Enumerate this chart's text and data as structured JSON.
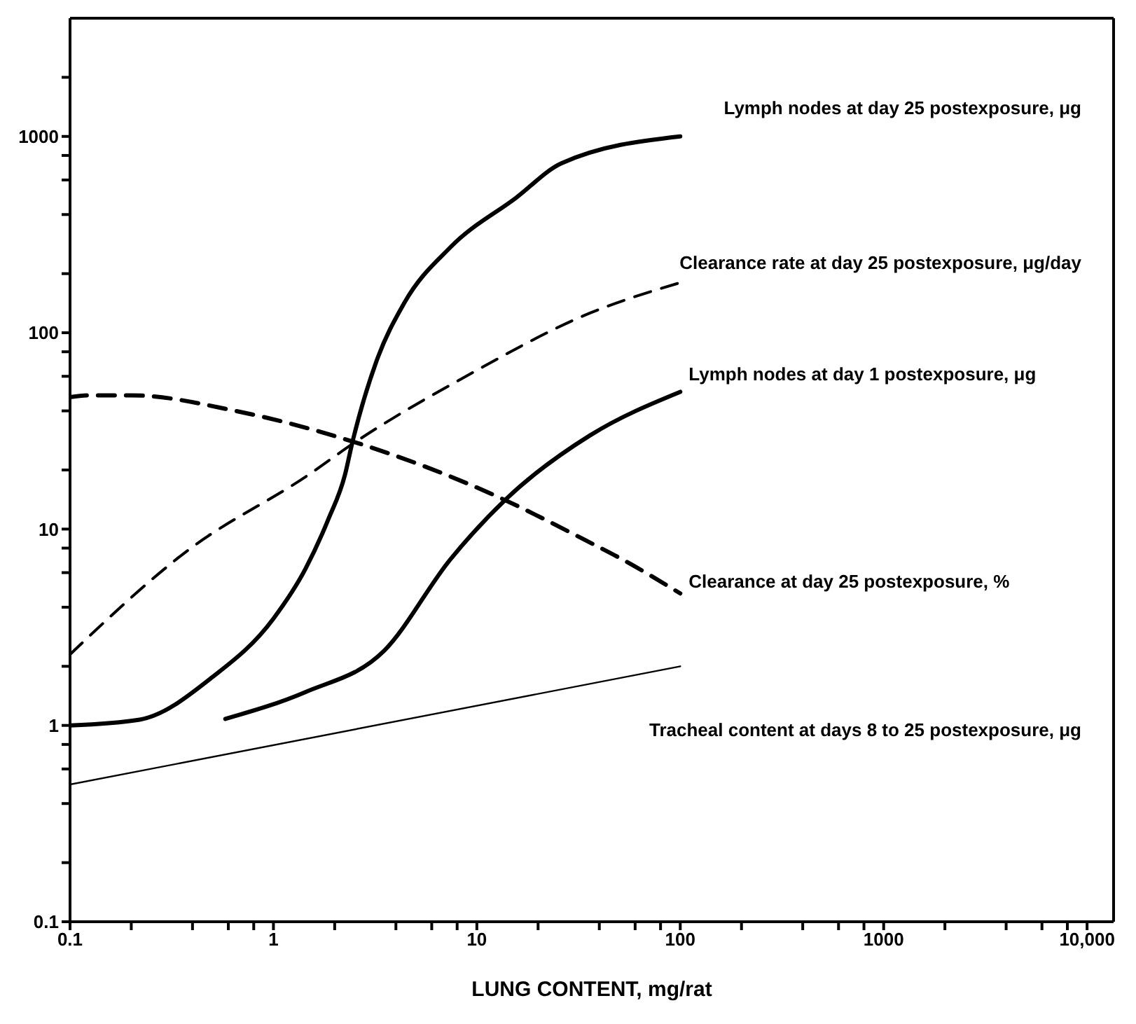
{
  "chart_data": {
    "type": "line",
    "xlabel": "LUNG CONTENT, mg/rat",
    "log": "xy",
    "xlim": [
      0.1,
      13500
    ],
    "ylim": [
      0.1,
      4000
    ],
    "xticks": [
      0.1,
      {
        "value": 0.2,
        "label": null
      },
      {
        "value": 0.4,
        "label": null
      },
      {
        "value": 0.6,
        "label": null
      },
      {
        "value": 0.8,
        "label": null
      },
      1,
      {
        "value": 2,
        "label": null
      },
      {
        "value": 4,
        "label": null
      },
      {
        "value": 6,
        "label": null
      },
      {
        "value": 8,
        "label": null
      },
      10,
      {
        "value": 20,
        "label": null
      },
      {
        "value": 40,
        "label": null
      },
      {
        "value": 60,
        "label": null
      },
      {
        "value": 80,
        "label": null
      },
      100,
      {
        "value": 200,
        "label": null
      },
      {
        "value": 400,
        "label": null
      },
      {
        "value": 600,
        "label": null
      },
      {
        "value": 800,
        "label": null
      },
      1000,
      {
        "value": 2000,
        "label": null
      },
      {
        "value": 4000,
        "label": null
      },
      {
        "value": 6000,
        "label": null
      },
      {
        "value": 8000,
        "label": null
      },
      {
        "value": 10000,
        "label": "10,000"
      }
    ],
    "yticks": [
      0.1,
      {
        "value": 0.2,
        "label": null
      },
      {
        "value": 0.4,
        "label": null
      },
      {
        "value": 0.6,
        "label": null
      },
      {
        "value": 0.8,
        "label": null
      },
      1,
      {
        "value": 2,
        "label": null
      },
      {
        "value": 4,
        "label": null
      },
      {
        "value": 6,
        "label": null
      },
      {
        "value": 8,
        "label": null
      },
      10,
      {
        "value": 20,
        "label": null
      },
      {
        "value": 40,
        "label": null
      },
      {
        "value": 60,
        "label": null
      },
      {
        "value": 80,
        "label": null
      },
      100,
      {
        "value": 200,
        "label": null
      },
      {
        "value": 400,
        "label": null
      },
      {
        "value": 600,
        "label": null
      },
      {
        "value": 800,
        "label": null
      },
      1000,
      {
        "value": 2000,
        "label": null
      }
    ],
    "marker": "none",
    "series": [
      {
        "name": "Lymph nodes at day 25 postexposure, μg",
        "color": "#000000",
        "line_style": "solid",
        "x": [
          0.1,
          0.22,
          0.5,
          1,
          1.44,
          1.86,
          2.25,
          2.43,
          3.2,
          4.4,
          7.4,
          15.6,
          26,
          100
        ],
        "values": [
          1.0,
          1.07,
          1.76,
          3.5,
          6.3,
          11.2,
          19,
          27,
          71,
          142,
          272,
          487,
          729,
          1000
        ]
      },
      {
        "name": "Clearance rate at day 25 postexposure, μg/day",
        "color": "#000000",
        "line_style": "dashed",
        "x": [
          0.1,
          0.38,
          1.5,
          2.43,
          9.1,
          36,
          100
        ],
        "values": [
          2.3,
          7.8,
          19,
          27,
          61,
          126,
          180
        ]
      },
      {
        "name": "Lymph nodes at day 1 postexposure, μg",
        "color": "#000000",
        "line_style": "solid",
        "x": [
          0.58,
          1.44,
          3.5,
          7.4,
          14,
          36,
          100
        ],
        "values": [
          1.08,
          1.48,
          2.4,
          7,
          14.3,
          30,
          50
        ]
      },
      {
        "name": "Clearance at day 25 postexposure, %",
        "color": "#000000",
        "line_style": "dashed",
        "x": [
          0.1,
          0.123,
          0.2,
          0.65,
          2.43,
          12.5,
          34,
          52,
          100
        ],
        "values": [
          47,
          48,
          48,
          40,
          28,
          14.7,
          8.8,
          7,
          4.7
        ]
      },
      {
        "name": "Tracheal content at days 8 to 25 postexposure, μg",
        "color": "#000000",
        "line_style": "solid",
        "x": [
          0.1,
          100
        ],
        "values": [
          0.5,
          2
        ]
      }
    ]
  }
}
